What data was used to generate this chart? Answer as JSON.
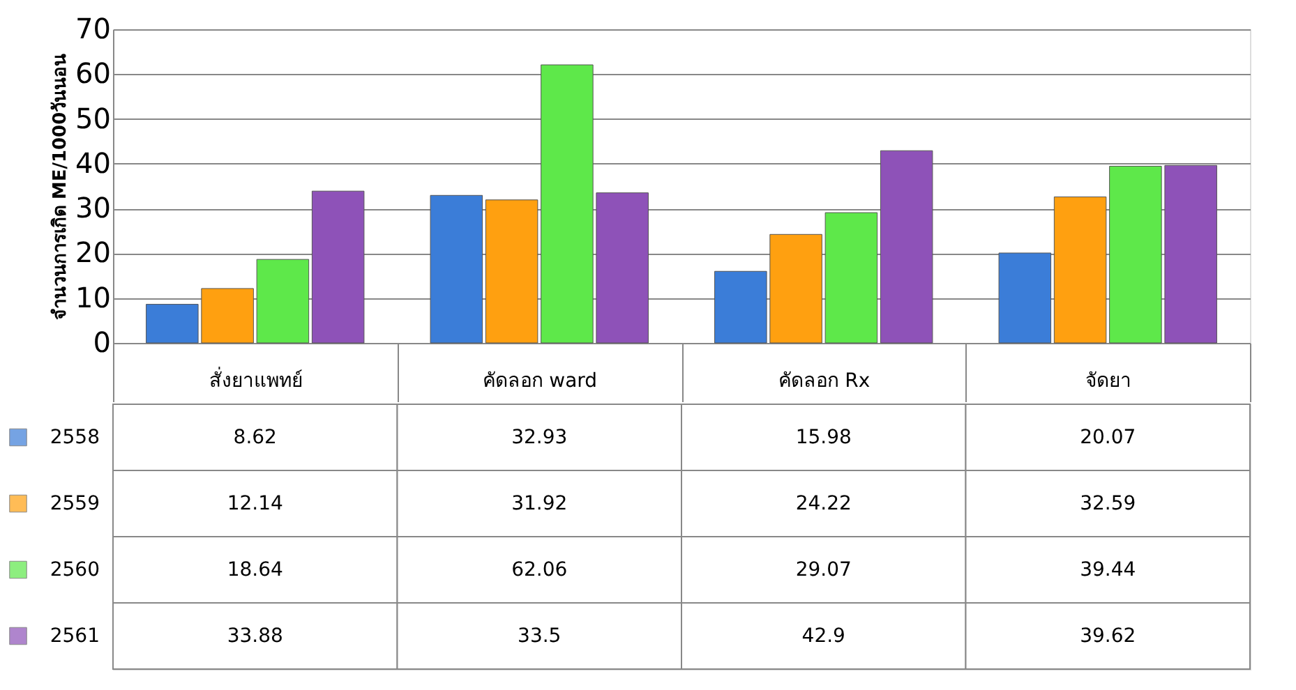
{
  "chart_data": {
    "type": "bar",
    "ylabel": "จำนวนการเกิด ME/1000วันนอน",
    "categories": [
      "สั่งยาแพทย์",
      "คัดลอก ward",
      "คัดลอก Rx",
      "จัดยา"
    ],
    "series": [
      {
        "name": "2558",
        "color": "#3b7dd8",
        "values": [
          8.62,
          32.93,
          15.98,
          20.07
        ]
      },
      {
        "name": "2559",
        "color": "#ffa010",
        "values": [
          12.14,
          31.92,
          24.22,
          32.59
        ]
      },
      {
        "name": "2560",
        "color": "#5ee84a",
        "values": [
          18.64,
          62.06,
          29.07,
          39.44
        ]
      },
      {
        "name": "2561",
        "color": "#8e52b8",
        "values": [
          33.88,
          33.5,
          42.9,
          39.62
        ]
      }
    ],
    "ylim": [
      0,
      70
    ],
    "yticks": [
      0,
      10,
      20,
      30,
      40,
      50,
      60,
      70
    ],
    "grid": "y",
    "legend": "bottom left",
    "data_labels": true
  }
}
